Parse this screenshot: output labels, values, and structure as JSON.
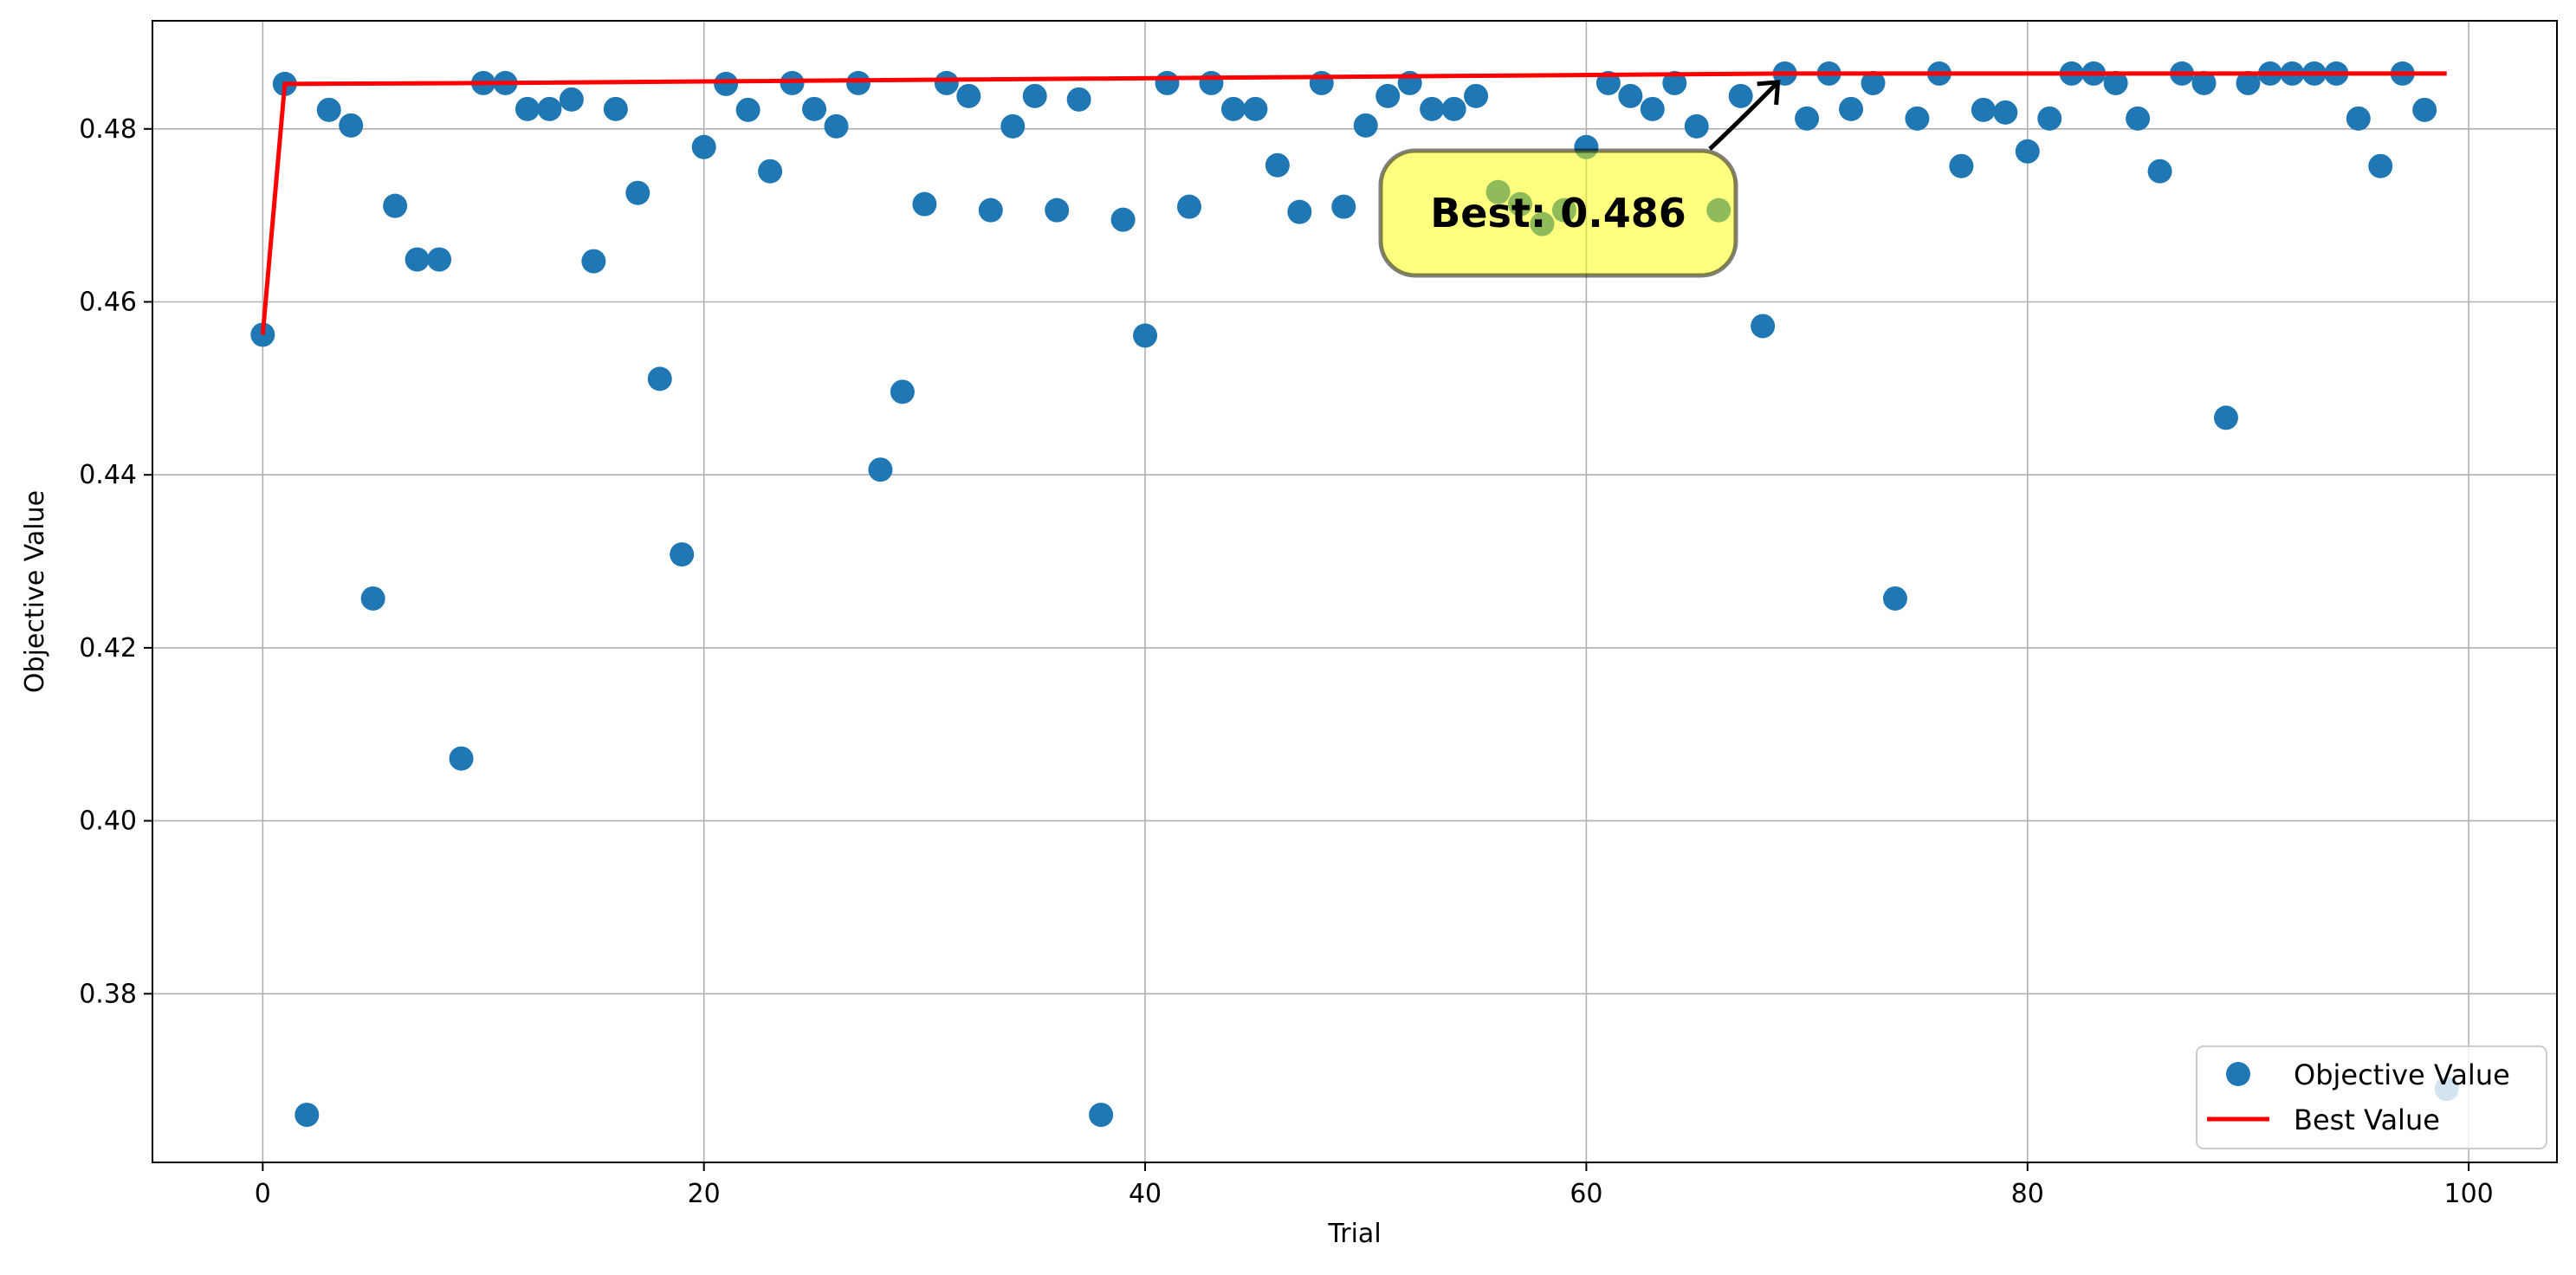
{
  "chart_data": {
    "type": "scatter",
    "title": "",
    "xlabel": "Trial",
    "ylabel": "Objective Value",
    "xlim": [
      -5,
      104
    ],
    "ylim": [
      0.3605,
      0.4925
    ],
    "xticks": [
      0,
      20,
      40,
      60,
      80,
      100
    ],
    "yticks": [
      0.38,
      0.4,
      0.42,
      0.44,
      0.46,
      0.48
    ],
    "ytick_labels": [
      "0.38",
      "0.40",
      "0.42",
      "0.44",
      "0.46",
      "0.48"
    ],
    "grid": true,
    "legend": "bottom-right",
    "series": [
      {
        "name": "Objective Value",
        "kind": "markers",
        "color": "#1f77b4",
        "x": [
          0,
          1,
          2,
          3,
          4,
          5,
          6,
          7,
          8,
          9,
          10,
          11,
          12,
          13,
          14,
          15,
          16,
          17,
          18,
          19,
          20,
          21,
          22,
          23,
          24,
          25,
          26,
          27,
          28,
          29,
          30,
          31,
          32,
          33,
          34,
          35,
          36,
          37,
          38,
          39,
          40,
          41,
          42,
          43,
          44,
          45,
          46,
          47,
          48,
          49,
          50,
          51,
          52,
          53,
          54,
          55,
          56,
          57,
          58,
          59,
          60,
          61,
          62,
          63,
          64,
          65,
          66,
          67,
          68,
          69,
          70,
          71,
          72,
          73,
          74,
          75,
          76,
          77,
          78,
          79,
          80,
          81,
          82,
          83,
          84,
          85,
          86,
          87,
          88,
          89,
          90,
          91,
          92,
          93,
          94,
          95,
          96,
          97,
          98,
          99
        ],
        "y": [
          0.4562,
          0.4852,
          0.366,
          0.4822,
          0.4804,
          0.4257,
          0.4711,
          0.4649,
          0.4649,
          0.4072,
          0.4853,
          0.4853,
          0.4823,
          0.4823,
          0.4834,
          0.4647,
          0.4823,
          0.4726,
          0.4511,
          0.4308,
          0.4779,
          0.4852,
          0.4822,
          0.4751,
          0.4853,
          0.4823,
          0.4803,
          0.4853,
          0.4406,
          0.4496,
          0.4713,
          0.4853,
          0.4838,
          0.4706,
          0.4803,
          0.4838,
          0.4706,
          0.4834,
          0.366,
          0.4695,
          0.4561,
          0.4853,
          0.471,
          0.4853,
          0.4823,
          0.4823,
          0.4758,
          0.4704,
          0.4853,
          0.471,
          0.4804,
          0.4838,
          0.4853,
          0.4823,
          0.4823,
          0.4838,
          0.4727,
          0.4713,
          0.469,
          0.4706,
          0.4779,
          0.4853,
          0.4838,
          0.4823,
          0.4853,
          0.4803,
          0.4706,
          0.4838,
          0.4572,
          0.4864,
          0.4812,
          0.4864,
          0.4823,
          0.4853,
          0.4257,
          0.4812,
          0.4864,
          0.4757,
          0.4822,
          0.4819,
          0.4774,
          0.4812,
          0.4864,
          0.4864,
          0.4853,
          0.4812,
          0.4751,
          0.4864,
          0.4853,
          0.4466,
          0.4853,
          0.4864,
          0.4864,
          0.4864,
          0.4864,
          0.4812,
          0.4757,
          0.4864,
          0.4822,
          0.369
        ]
      },
      {
        "name": "Best Value",
        "kind": "line",
        "color": "#ff0000",
        "x": [
          0,
          1,
          10,
          69,
          99
        ],
        "y": [
          0.4562,
          0.4852,
          0.4853,
          0.4864,
          0.4864
        ]
      }
    ],
    "annotation": {
      "text": "Best: 0.486",
      "box_color": "#ffff00",
      "target_x": 69,
      "target_y": 0.4864
    }
  }
}
